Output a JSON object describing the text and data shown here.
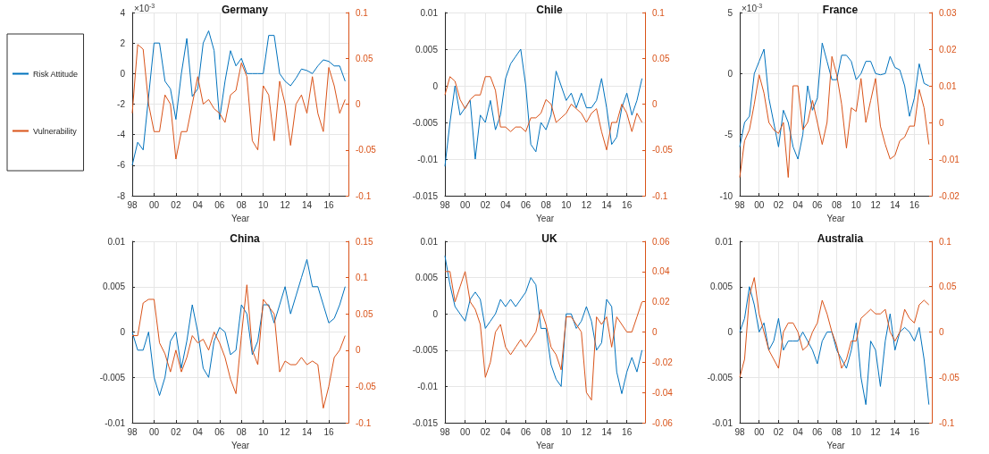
{
  "chart_data": [
    {
      "type": "line",
      "title": "Germany",
      "xlabel": "Year",
      "legend": "left",
      "grid": true,
      "annotations": [
        "×10$^{-3}$"
      ],
      "x": [
        1998,
        1998.5,
        1999,
        1999.5,
        2000,
        2000.5,
        2001,
        2001.5,
        2002,
        2002.5,
        2003,
        2003.5,
        2004,
        2004.5,
        2005,
        2005.5,
        2006,
        2006.5,
        2007,
        2007.5,
        2008,
        2008.5,
        2009,
        2009.5,
        2010,
        2010.5,
        2011,
        2011.5,
        2012,
        2012.5,
        2013,
        2013.5,
        2014,
        2014.5,
        2015,
        2015.5,
        2016,
        2016.5,
        2017,
        2017.5
      ],
      "xlim": [
        1998,
        2017.8
      ],
      "xticks": [
        {
          "value": 1998,
          "label": "98"
        },
        {
          "value": 2000,
          "label": "00"
        },
        {
          "value": 2002,
          "label": "02"
        },
        {
          "value": 2004,
          "label": "04"
        },
        {
          "value": 2006,
          "label": "06"
        },
        {
          "value": 2008,
          "label": "08"
        },
        {
          "value": 2010,
          "label": "10"
        },
        {
          "value": 2012,
          "label": "12"
        },
        {
          "value": 2014,
          "label": "14"
        },
        {
          "value": 2016,
          "label": "16"
        }
      ],
      "ylim": [
        -8,
        4
      ],
      "yticks": [
        -8,
        -6,
        -4,
        -2,
        0,
        2,
        4
      ],
      "y2lim": [
        -0.1,
        0.1
      ],
      "y2ticks": [
        -0.1,
        -0.05,
        0,
        0.05,
        0.1
      ],
      "series": [
        {
          "name": "Risk Attitude",
          "color": "#0072bd",
          "values": [
            -6,
            -4.5,
            -5,
            -1.5,
            2,
            2,
            -0.5,
            -1,
            -3,
            0,
            2.3,
            -1.5,
            -1,
            2,
            2.8,
            1.5,
            -3,
            -0.5,
            1.5,
            0.5,
            1,
            0,
            0,
            0,
            0,
            2.5,
            2.5,
            0,
            -0.5,
            -0.8,
            -0.3,
            0.3,
            0.2,
            0,
            0.5,
            0.9,
            0.8,
            0.5,
            0.5,
            -0.5
          ]
        },
        {
          "name": "Vulnerability",
          "color": "#d95319",
          "axis": "y2",
          "values": [
            -0.01,
            0.065,
            0.06,
            0,
            -0.03,
            -0.03,
            0.01,
            0,
            -0.06,
            -0.03,
            -0.03,
            0,
            0.03,
            0,
            0.005,
            -0.005,
            -0.01,
            -0.02,
            0.01,
            0.015,
            0.045,
            0.03,
            -0.04,
            -0.05,
            0.02,
            0.01,
            -0.04,
            0.025,
            0,
            -0.045,
            0,
            0.01,
            -0.01,
            0.03,
            -0.01,
            -0.03,
            0.04,
            0.02,
            -0.01,
            0.005
          ]
        }
      ]
    },
    {
      "type": "line",
      "title": "Chile",
      "xlabel": "Year",
      "grid": true,
      "x": [
        1998,
        1998.5,
        1999,
        1999.5,
        2000,
        2000.5,
        2001,
        2001.5,
        2002,
        2002.5,
        2003,
        2003.5,
        2004,
        2004.5,
        2005,
        2005.5,
        2006,
        2006.5,
        2007,
        2007.5,
        2008,
        2008.5,
        2009,
        2009.5,
        2010,
        2010.5,
        2011,
        2011.5,
        2012,
        2012.5,
        2013,
        2013.5,
        2014,
        2014.5,
        2015,
        2015.5,
        2016,
        2016.5,
        2017,
        2017.5
      ],
      "xlim": [
        1998,
        2017.8
      ],
      "xticks": [
        {
          "value": 1998,
          "label": "98"
        },
        {
          "value": 2000,
          "label": "00"
        },
        {
          "value": 2002,
          "label": "02"
        },
        {
          "value": 2004,
          "label": "04"
        },
        {
          "value": 2006,
          "label": "06"
        },
        {
          "value": 2008,
          "label": "08"
        },
        {
          "value": 2010,
          "label": "10"
        },
        {
          "value": 2012,
          "label": "12"
        },
        {
          "value": 2014,
          "label": "14"
        },
        {
          "value": 2016,
          "label": "16"
        }
      ],
      "ylim": [
        -0.015,
        0.01
      ],
      "yticks": [
        -0.015,
        -0.01,
        -0.005,
        0,
        0.005,
        0.01
      ],
      "y2lim": [
        -0.1,
        0.1
      ],
      "y2ticks": [
        -0.1,
        -0.05,
        0,
        0.05,
        0.1
      ],
      "series": [
        {
          "color": "#0072bd",
          "values": [
            -0.011,
            -0.005,
            0,
            -0.004,
            -0.003,
            -0.002,
            -0.01,
            -0.004,
            -0.005,
            -0.002,
            -0.006,
            -0.004,
            0.001,
            0.003,
            0.004,
            0.005,
            0,
            -0.008,
            -0.009,
            -0.005,
            -0.006,
            -0.004,
            0.002,
            0,
            -0.002,
            -0.001,
            -0.003,
            -0.001,
            -0.003,
            -0.003,
            -0.002,
            0.001,
            -0.003,
            -0.008,
            -0.007,
            -0.003,
            -0.001,
            -0.004,
            -0.002,
            0.001
          ]
        },
        {
          "color": "#d95319",
          "axis": "y2",
          "values": [
            0.01,
            0.03,
            0.025,
            0.005,
            -0.005,
            0.005,
            0.01,
            0.01,
            0.03,
            0.03,
            0.015,
            -0.025,
            -0.025,
            -0.03,
            -0.025,
            -0.025,
            -0.03,
            -0.015,
            -0.015,
            -0.01,
            0.005,
            0,
            -0.02,
            -0.015,
            -0.01,
            0,
            -0.005,
            -0.01,
            -0.02,
            -0.01,
            -0.005,
            -0.03,
            -0.05,
            -0.02,
            -0.02,
            0,
            -0.01,
            -0.03,
            -0.01,
            -0.02
          ]
        }
      ]
    },
    {
      "type": "line",
      "title": "France",
      "xlabel": "Year",
      "grid": true,
      "annotations": [
        "×10$^{-3}$"
      ],
      "x": [
        1998,
        1998.5,
        1999,
        1999.5,
        2000,
        2000.5,
        2001,
        2001.5,
        2002,
        2002.5,
        2003,
        2003.5,
        2004,
        2004.5,
        2005,
        2005.5,
        2006,
        2006.5,
        2007,
        2007.5,
        2008,
        2008.5,
        2009,
        2009.5,
        2010,
        2010.5,
        2011,
        2011.5,
        2012,
        2012.5,
        2013,
        2013.5,
        2014,
        2014.5,
        2015,
        2015.5,
        2016,
        2016.5,
        2017,
        2017.5
      ],
      "xlim": [
        1998,
        2017.8
      ],
      "xticks": [
        {
          "value": 1998,
          "label": "98"
        },
        {
          "value": 2000,
          "label": "00"
        },
        {
          "value": 2002,
          "label": "02"
        },
        {
          "value": 2004,
          "label": "04"
        },
        {
          "value": 2006,
          "label": "06"
        },
        {
          "value": 2008,
          "label": "08"
        },
        {
          "value": 2010,
          "label": "10"
        },
        {
          "value": 2012,
          "label": "12"
        },
        {
          "value": 2014,
          "label": "14"
        },
        {
          "value": 2016,
          "label": "16"
        }
      ],
      "ylim": [
        -10,
        5
      ],
      "yticks": [
        -10,
        -5,
        0,
        5
      ],
      "y2lim": [
        -0.02,
        0.03
      ],
      "y2ticks": [
        -0.02,
        -0.01,
        0,
        0.01,
        0.02,
        0.03
      ],
      "series": [
        {
          "color": "#0072bd",
          "values": [
            -6,
            -4,
            -3.5,
            0,
            1,
            2,
            -2,
            -4,
            -6,
            -3,
            -4,
            -6,
            -7,
            -5,
            -1,
            -3,
            -2,
            2.5,
            1,
            -0.5,
            -0.5,
            1.5,
            1.5,
            1,
            -0.5,
            0,
            1,
            1,
            0,
            -0.1,
            0,
            1.4,
            0.5,
            0.3,
            -1,
            -3.5,
            -2,
            0.8,
            -0.8,
            -1
          ]
        },
        {
          "color": "#d95319",
          "axis": "y2",
          "values": [
            -0.015,
            -0.005,
            -0.002,
            0.005,
            0.013,
            0.008,
            0,
            -0.002,
            -0.003,
            0,
            -0.015,
            0.01,
            0.01,
            -0.002,
            0,
            0.006,
            0,
            -0.006,
            0,
            0.018,
            0.013,
            0.005,
            -0.007,
            0.004,
            0.003,
            0.012,
            0,
            0.006,
            0.012,
            -0.001,
            -0.006,
            -0.01,
            -0.009,
            -0.005,
            -0.004,
            -0.001,
            -0.001,
            0.009,
            0.004,
            -0.006
          ]
        }
      ]
    },
    {
      "type": "line",
      "title": "China",
      "xlabel": "Year",
      "grid": true,
      "x": [
        1998,
        1998.5,
        1999,
        1999.5,
        2000,
        2000.5,
        2001,
        2001.5,
        2002,
        2002.5,
        2003,
        2003.5,
        2004,
        2004.5,
        2005,
        2005.5,
        2006,
        2006.5,
        2007,
        2007.5,
        2008,
        2008.5,
        2009,
        2009.5,
        2010,
        2010.5,
        2011,
        2011.5,
        2012,
        2012.5,
        2013,
        2013.5,
        2014,
        2014.5,
        2015,
        2015.5,
        2016,
        2016.5,
        2017,
        2017.5
      ],
      "xlim": [
        1998,
        2017.8
      ],
      "xticks": [
        {
          "value": 1998,
          "label": "98"
        },
        {
          "value": 2000,
          "label": "00"
        },
        {
          "value": 2002,
          "label": "02"
        },
        {
          "value": 2004,
          "label": "04"
        },
        {
          "value": 2006,
          "label": "06"
        },
        {
          "value": 2008,
          "label": "08"
        },
        {
          "value": 2010,
          "label": "10"
        },
        {
          "value": 2012,
          "label": "12"
        },
        {
          "value": 2014,
          "label": "14"
        },
        {
          "value": 2016,
          "label": "16"
        }
      ],
      "ylim": [
        -0.01,
        0.01
      ],
      "yticks": [
        -0.01,
        -0.005,
        0,
        0.005,
        0.01
      ],
      "y2lim": [
        -0.1,
        0.15
      ],
      "y2ticks": [
        -0.1,
        -0.05,
        0,
        0.05,
        0.1,
        0.15
      ],
      "series": [
        {
          "color": "#0072bd",
          "values": [
            0,
            -0.002,
            -0.002,
            0,
            -0.005,
            -0.007,
            -0.005,
            -0.001,
            0,
            -0.004,
            -0.001,
            0.003,
            0,
            -0.004,
            -0.005,
            -0.001,
            0.0005,
            0,
            -0.0025,
            -0.002,
            0.003,
            0.002,
            -0.0025,
            -0.001,
            0.003,
            0.003,
            0.001,
            0.003,
            0.005,
            0.002,
            0.004,
            0.006,
            0.008,
            0.005,
            0.005,
            0.003,
            0.001,
            0.0015,
            0.003,
            0.005
          ]
        },
        {
          "color": "#d95319",
          "axis": "y2",
          "values": [
            0.02,
            0.02,
            0.065,
            0.07,
            0.07,
            0.01,
            -0.005,
            -0.03,
            0,
            -0.03,
            -0.01,
            0.02,
            0.01,
            0.015,
            0,
            0.025,
            0.01,
            -0.01,
            -0.04,
            -0.06,
            0.02,
            0.09,
            0,
            -0.02,
            0.07,
            0.06,
            0.05,
            -0.03,
            -0.015,
            -0.02,
            -0.02,
            -0.01,
            -0.02,
            -0.015,
            -0.02,
            -0.08,
            -0.05,
            -0.01,
            0,
            0.02
          ]
        }
      ]
    },
    {
      "type": "line",
      "title": "UK",
      "xlabel": "Year",
      "grid": true,
      "x": [
        1998,
        1998.5,
        1999,
        1999.5,
        2000,
        2000.5,
        2001,
        2001.5,
        2002,
        2002.5,
        2003,
        2003.5,
        2004,
        2004.5,
        2005,
        2005.5,
        2006,
        2006.5,
        2007,
        2007.5,
        2008,
        2008.5,
        2009,
        2009.5,
        2010,
        2010.5,
        2011,
        2011.5,
        2012,
        2012.5,
        2013,
        2013.5,
        2014,
        2014.5,
        2015,
        2015.5,
        2016,
        2016.5,
        2017,
        2017.5
      ],
      "xlim": [
        1998,
        2017.8
      ],
      "xticks": [
        {
          "value": 1998,
          "label": "98"
        },
        {
          "value": 2000,
          "label": "00"
        },
        {
          "value": 2002,
          "label": "02"
        },
        {
          "value": 2004,
          "label": "04"
        },
        {
          "value": 2006,
          "label": "06"
        },
        {
          "value": 2008,
          "label": "08"
        },
        {
          "value": 2010,
          "label": "10"
        },
        {
          "value": 2012,
          "label": "12"
        },
        {
          "value": 2014,
          "label": "14"
        },
        {
          "value": 2016,
          "label": "16"
        }
      ],
      "ylim": [
        -0.015,
        0.01
      ],
      "yticks": [
        -0.015,
        -0.01,
        -0.005,
        0,
        0.005,
        0.01
      ],
      "y2lim": [
        -0.06,
        0.06
      ],
      "y2ticks": [
        -0.06,
        -0.04,
        -0.02,
        0,
        0.02,
        0.04,
        0.06
      ],
      "series": [
        {
          "color": "#0072bd",
          "values": [
            0.008,
            0.004,
            0.001,
            0,
            -0.001,
            0.002,
            0.003,
            0.002,
            -0.002,
            -0.001,
            0,
            0.002,
            0.001,
            0.002,
            0.001,
            0.002,
            0.003,
            0.005,
            0.004,
            -0.002,
            -0.002,
            -0.007,
            -0.009,
            -0.01,
            0,
            0,
            -0.002,
            -0.001,
            0.001,
            -0.001,
            -0.005,
            -0.004,
            0.002,
            0.001,
            -0.008,
            -0.011,
            -0.008,
            -0.006,
            -0.008,
            -0.005
          ]
        },
        {
          "color": "#d95319",
          "axis": "y2",
          "values": [
            0.04,
            0.04,
            0.02,
            0.03,
            0.04,
            0.02,
            0.015,
            0.005,
            -0.03,
            -0.02,
            0,
            0.005,
            -0.01,
            -0.015,
            -0.01,
            -0.005,
            -0.01,
            -0.005,
            0,
            0.015,
            0.005,
            -0.01,
            -0.015,
            -0.025,
            0.01,
            0.01,
            0.005,
            0,
            -0.04,
            -0.045,
            0.01,
            0.005,
            0.01,
            -0.01,
            0.01,
            0.005,
            0,
            0,
            0.01,
            0.02
          ]
        }
      ]
    },
    {
      "type": "line",
      "title": "Australia",
      "xlabel": "Year",
      "grid": true,
      "x": [
        1998,
        1998.5,
        1999,
        1999.5,
        2000,
        2000.5,
        2001,
        2001.5,
        2002,
        2002.5,
        2003,
        2003.5,
        2004,
        2004.5,
        2005,
        2005.5,
        2006,
        2006.5,
        2007,
        2007.5,
        2008,
        2008.5,
        2009,
        2009.5,
        2010,
        2010.5,
        2011,
        2011.5,
        2012,
        2012.5,
        2013,
        2013.5,
        2014,
        2014.5,
        2015,
        2015.5,
        2016,
        2016.5,
        2017,
        2017.5
      ],
      "xlim": [
        1998,
        2017.8
      ],
      "xticks": [
        {
          "value": 1998,
          "label": "98"
        },
        {
          "value": 2000,
          "label": "00"
        },
        {
          "value": 2002,
          "label": "02"
        },
        {
          "value": 2004,
          "label": "04"
        },
        {
          "value": 2006,
          "label": "06"
        },
        {
          "value": 2008,
          "label": "08"
        },
        {
          "value": 2010,
          "label": "10"
        },
        {
          "value": 2012,
          "label": "12"
        },
        {
          "value": 2014,
          "label": "14"
        },
        {
          "value": 2016,
          "label": "16"
        }
      ],
      "ylim": [
        -0.01,
        0.01
      ],
      "yticks": [
        -0.01,
        -0.005,
        0,
        0.005,
        0.01
      ],
      "y2lim": [
        -0.1,
        0.1
      ],
      "y2ticks": [
        -0.1,
        -0.05,
        0,
        0.05,
        0.1
      ],
      "series": [
        {
          "color": "#0072bd",
          "values": [
            0,
            0.0015,
            0.005,
            0.003,
            0,
            0.001,
            -0.002,
            -0.001,
            0.0015,
            -0.002,
            -0.001,
            -0.001,
            -0.001,
            0,
            -0.001,
            -0.002,
            -0.0035,
            -0.001,
            0,
            0,
            -0.002,
            -0.003,
            -0.004,
            -0.002,
            0.001,
            -0.005,
            -0.008,
            -0.001,
            -0.002,
            -0.006,
            -0.001,
            0.002,
            -0.002,
            0,
            0.0005,
            0,
            -0.001,
            0.0005,
            -0.003,
            -0.008
          ]
        },
        {
          "color": "#d95319",
          "axis": "y2",
          "values": [
            -0.05,
            -0.03,
            0.04,
            0.06,
            0.02,
            0,
            -0.02,
            -0.03,
            -0.04,
            0,
            0.01,
            0.01,
            0,
            -0.02,
            -0.015,
            0,
            0.01,
            0.035,
            0.02,
            0,
            -0.015,
            -0.04,
            -0.03,
            -0.01,
            -0.01,
            0.015,
            0.02,
            0.025,
            0.02,
            0.02,
            0.025,
            0,
            -0.01,
            0,
            0.025,
            0.015,
            0.01,
            0.03,
            0.035,
            0.03
          ]
        }
      ]
    }
  ]
}
